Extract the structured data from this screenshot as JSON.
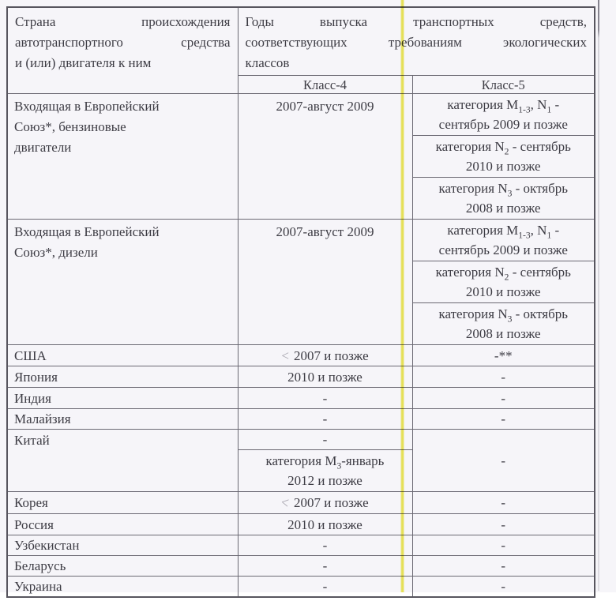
{
  "colors": {
    "highlighter_yellow": "#ece746",
    "page_background": "#f6f5f9",
    "table_border": "#6b6973",
    "text": "#3d3c44"
  },
  "table": {
    "header": {
      "country_lines": [
        "Страна происхождения",
        "автотранспортного средства",
        "и (или) двигателя к ним"
      ],
      "years_lines": [
        "Годы выпуска транспортных средств,",
        "соответствующих требованиям экологических",
        "классов"
      ],
      "class4_label": "Класс-4",
      "class5_label": "Класс-5"
    },
    "rows": {
      "eu_petrol": {
        "country_lines": [
          "Входящая в Европейский",
          "Союз*, бензиновые",
          "двигатели"
        ],
        "class4": "2007-август 2009",
        "class5_cells": [
          {
            "lines": [
              "категория M{1-3}, N{1} -",
              "сентябрь 2009 и позже"
            ]
          },
          {
            "lines": [
              "категория N{2} - сентябрь",
              "2010 и позже"
            ]
          },
          {
            "lines": [
              "категория N{3} - октябрь",
              "2008 и позже"
            ]
          }
        ]
      },
      "eu_diesel": {
        "country_lines": [
          "Входящая в Европейский",
          "Союз*, дизели"
        ],
        "class4": "2007-август 2009",
        "class5_cells": [
          {
            "lines": [
              "категория M{1-3}, N{1} -",
              "сентябрь 2009 и позже"
            ]
          },
          {
            "lines": [
              "категория N{2} - сентябрь",
              "2010 и позже"
            ]
          },
          {
            "lines": [
              "категория N{3} - октябрь",
              "2008 и позже"
            ]
          }
        ]
      },
      "usa": {
        "country": "США",
        "class4_mark": "<",
        "class4": "2007 и позже",
        "class5": "-**"
      },
      "japan": {
        "country": "Япония",
        "class4": "2010 и позже",
        "class5": "-"
      },
      "india": {
        "country": "Индия",
        "class4": "-",
        "class5": "-"
      },
      "malaysia": {
        "country": "Малайзия",
        "class4": "-",
        "class5": "-"
      },
      "china": {
        "country": "Китай",
        "class4_top": "-",
        "class4_bottom_lines": [
          "категория M{3}-январь",
          "2012 и позже"
        ],
        "class5": "-"
      },
      "korea": {
        "country": "Корея",
        "class4_mark": "<",
        "class4": "2007 и позже",
        "class5": "-"
      },
      "russia": {
        "country": "Россия",
        "class4": "2010 и позже",
        "class5": "-"
      },
      "uzbekistan": {
        "country": "Узбекистан",
        "class4": "-",
        "class5": "-"
      },
      "belarus": {
        "country": "Беларусь",
        "class4": "-",
        "class5": "-"
      },
      "ukraine": {
        "country": "Украина",
        "class4": "-",
        "class5": "-"
      }
    }
  }
}
